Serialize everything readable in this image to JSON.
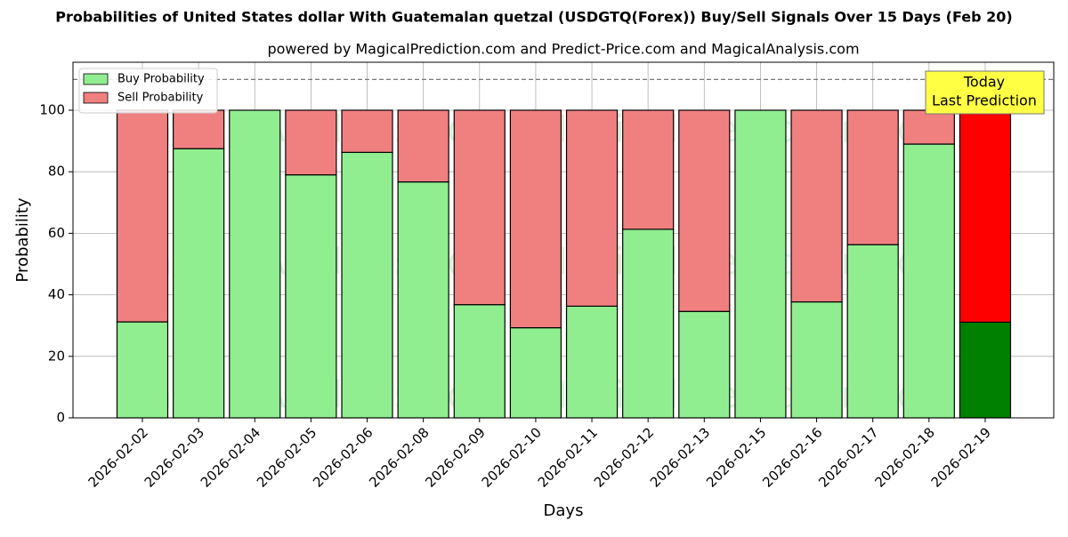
{
  "chart_data": {
    "type": "stacked_bar",
    "title": "Probabilities of United States dollar With Guatemalan quetzal (USDGTQ(Forex)) Buy/Sell Signals Over 15 Days (Feb 20)",
    "subtitle": "powered by MagicalPrediction.com and Predict-Price.com and MagicalAnalysis.com",
    "x_label": "Days",
    "y_label": "Probability",
    "categories": [
      "2026-02-02",
      "2026-02-03",
      "2026-02-04",
      "2026-02-05",
      "2026-02-06",
      "2026-02-08",
      "2026-02-09",
      "2026-02-10",
      "2026-02-11",
      "2026-02-12",
      "2026-02-13",
      "2026-02-15",
      "2026-02-16",
      "2026-02-17",
      "2026-02-18",
      "2026-02-19"
    ],
    "series": [
      {
        "name": "Buy Probability",
        "color": "#90ee90",
        "last_color": "#008000",
        "values": [
          31.2,
          87.5,
          100,
          79,
          86.3,
          76.7,
          36.8,
          29.3,
          36.3,
          61.3,
          34.6,
          100,
          37.7,
          56.3,
          89,
          31.1
        ]
      },
      {
        "name": "Sell Probability",
        "color": "#f08080",
        "last_color": "#ff0000",
        "values": [
          68.8,
          12.5,
          0,
          21,
          13.7,
          23.3,
          63.2,
          70.7,
          63.7,
          38.7,
          65.4,
          0,
          62.3,
          43.7,
          11,
          68.9
        ]
      }
    ],
    "ylim": [
      0,
      115.6
    ],
    "yticks": [
      0,
      20,
      40,
      60,
      80,
      100
    ],
    "grid": true,
    "legend": "upper left",
    "reference_line": 110,
    "annotation": [
      "Today",
      "Last Prediction"
    ],
    "watermarks": [
      "MagicalAnalysis.com",
      "MagicalPrediction.com"
    ]
  }
}
